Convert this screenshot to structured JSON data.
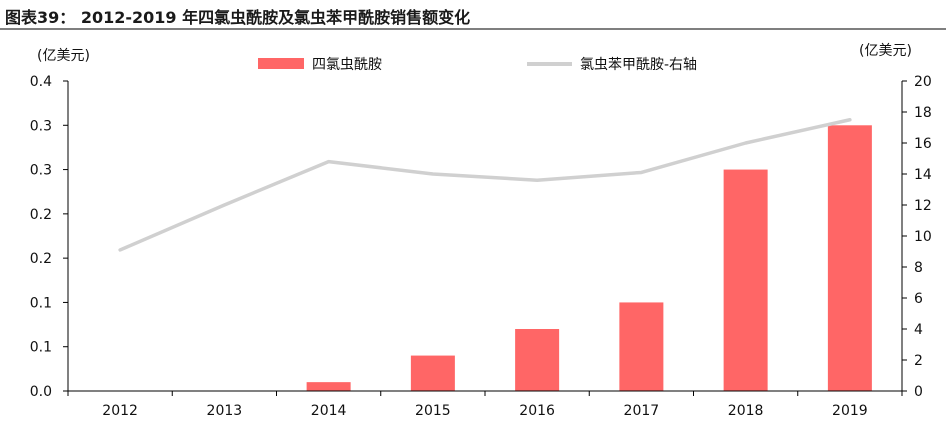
{
  "header": {
    "title": "图表39：   2012-2019 年四氯虫酰胺及氯虫苯甲酰胺销售额变化"
  },
  "chart_data": {
    "type": "bar",
    "categories": [
      "2012",
      "2013",
      "2014",
      "2015",
      "2016",
      "2017",
      "2018",
      "2019"
    ],
    "series": [
      {
        "name": "四氯虫酰胺",
        "type": "bar",
        "axis": "left",
        "color": "#ff6666",
        "values": [
          0,
          0,
          0.01,
          0.04,
          0.07,
          0.1,
          0.25,
          0.3
        ]
      },
      {
        "name": "氯虫苯甲酰胺-右轴",
        "type": "line",
        "axis": "right",
        "color": "#d0d0d0",
        "values": [
          9.1,
          12.0,
          14.8,
          14.0,
          13.6,
          14.1,
          16.0,
          17.5
        ]
      }
    ],
    "y_left": {
      "unit_label": "(亿美元)",
      "ylim": [
        0,
        0.35
      ],
      "tick_values": [
        0,
        0.05,
        0.1,
        0.15,
        0.2,
        0.25,
        0.3,
        0.35
      ],
      "tick_labels": [
        "0.0",
        "0.1",
        "0.1",
        "0.2",
        "0.2",
        "0.3",
        "0.3",
        "0.4"
      ]
    },
    "y_right": {
      "unit_label": "(亿美元)",
      "ylim": [
        0,
        20
      ],
      "tick_values": [
        0,
        2,
        4,
        6,
        8,
        10,
        12,
        14,
        16,
        18,
        20
      ],
      "tick_labels": [
        "0",
        "2",
        "4",
        "6",
        "8",
        "10",
        "12",
        "14",
        "16",
        "18",
        "20"
      ]
    },
    "legend_position": "top",
    "grid": false
  }
}
